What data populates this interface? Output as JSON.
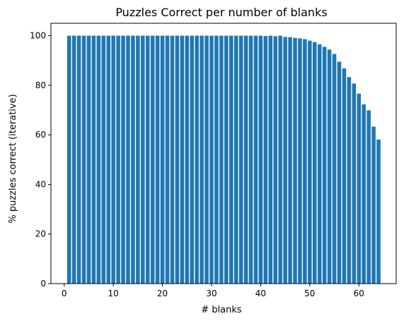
{
  "chart_data": {
    "type": "bar",
    "title": "Puzzles Correct per number of blanks",
    "xlabel": "# blanks",
    "ylabel": "% puzzles correct (iterative)",
    "bar_color": "#1f77b4",
    "xlim": [
      -2.7,
      67.6
    ],
    "ylim": [
      0,
      105
    ],
    "grid": false,
    "x_ticks": [
      0,
      10,
      20,
      30,
      40,
      50,
      60
    ],
    "y_ticks": [
      0,
      20,
      40,
      60,
      80,
      100
    ],
    "categories": [
      1,
      2,
      3,
      4,
      5,
      6,
      7,
      8,
      9,
      10,
      11,
      12,
      13,
      14,
      15,
      16,
      17,
      18,
      19,
      20,
      21,
      22,
      23,
      24,
      25,
      26,
      27,
      28,
      29,
      30,
      31,
      32,
      33,
      34,
      35,
      36,
      37,
      38,
      39,
      40,
      41,
      42,
      43,
      44,
      45,
      46,
      47,
      48,
      49,
      50,
      51,
      52,
      53,
      54,
      55,
      56,
      57,
      58,
      59,
      60,
      61,
      62,
      63,
      64
    ],
    "values": [
      100,
      100,
      100,
      100,
      100,
      100,
      100,
      100,
      100,
      100,
      100,
      100,
      100,
      100,
      100,
      100,
      100,
      100,
      100,
      100,
      100,
      100,
      100,
      100,
      100,
      100,
      100,
      100,
      100,
      100,
      100,
      100,
      100,
      100,
      100,
      100,
      100,
      100,
      100,
      100,
      99.9,
      100,
      99.8,
      100,
      99.5,
      99.4,
      99.1,
      98.9,
      98.6,
      98.0,
      97.4,
      96.5,
      95.5,
      94.4,
      92.6,
      89.5,
      86.8,
      83.3,
      80.7,
      76.6,
      72.3,
      69.9,
      63.3,
      58.1
    ]
  }
}
